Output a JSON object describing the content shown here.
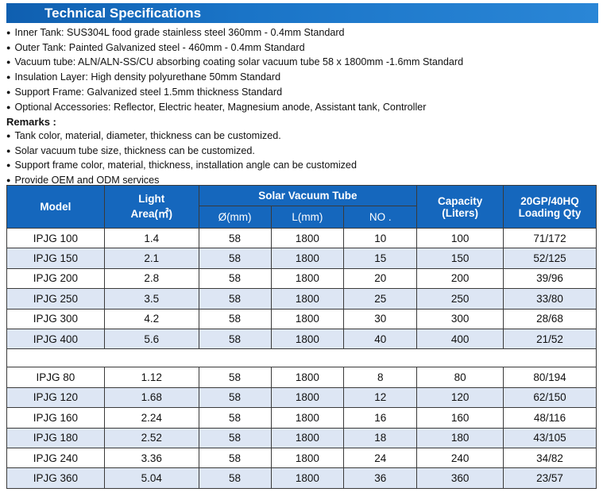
{
  "title": "Technical Specifications",
  "specs": [
    "Inner Tank: SUS304L food grade stainless steel 360mm - 0.4mm Standard",
    "Outer Tank: Painted Galvanized steel - 460mm - 0.4mm Standard",
    "Vacuum tube: ALN/ALN-SS/CU absorbing coating solar vacuum tube 58 x 1800mm -1.6mm Standard",
    "Insulation Layer: High density polyurethane 50mm Standard",
    "Support Frame: Galvanized steel 1.5mm thickness Standard",
    "Optional Accessories: Reflector, Electric heater, Magnesium anode, Assistant tank, Controller"
  ],
  "remarks_heading": "Remarks :",
  "remarks": [
    "Tank color, material, diameter, thickness can be customized.",
    "Solar vacuum tube size, thickness can be customized.",
    "Support frame color, material, thickness, installation angle can be customized",
    "Provide OEM and ODM services"
  ],
  "table": {
    "headers": {
      "model": "Model",
      "light_area_1": "Light",
      "light_area_2": "Area(㎡)",
      "tube_group": "Solar Vacuum Tube",
      "diameter": "Ø(mm)",
      "length": "L(mm)",
      "number": "NO .",
      "capacity_1": "Capacity",
      "capacity_2": "(Liters)",
      "loading_1": "20GP/40HQ",
      "loading_2": "Loading Qty"
    },
    "group1": [
      {
        "model": "IPJG 100",
        "area": "1.4",
        "dia": "58",
        "len": "1800",
        "no": "10",
        "cap": "100",
        "qty": "71/172"
      },
      {
        "model": "IPJG 150",
        "area": "2.1",
        "dia": "58",
        "len": "1800",
        "no": "15",
        "cap": "150",
        "qty": "52/125"
      },
      {
        "model": "IPJG 200",
        "area": "2.8",
        "dia": "58",
        "len": "1800",
        "no": "20",
        "cap": "200",
        "qty": "39/96"
      },
      {
        "model": "IPJG 250",
        "area": "3.5",
        "dia": "58",
        "len": "1800",
        "no": "25",
        "cap": "250",
        "qty": "33/80"
      },
      {
        "model": "IPJG 300",
        "area": "4.2",
        "dia": "58",
        "len": "1800",
        "no": "30",
        "cap": "300",
        "qty": "28/68"
      },
      {
        "model": "IPJG 400",
        "area": "5.6",
        "dia": "58",
        "len": "1800",
        "no": "40",
        "cap": "400",
        "qty": "21/52"
      }
    ],
    "group2": [
      {
        "model": "IPJG 80",
        "area": "1.12",
        "dia": "58",
        "len": "1800",
        "no": "8",
        "cap": "80",
        "qty": "80/194"
      },
      {
        "model": "IPJG 120",
        "area": "1.68",
        "dia": "58",
        "len": "1800",
        "no": "12",
        "cap": "120",
        "qty": "62/150"
      },
      {
        "model": "IPJG 160",
        "area": "2.24",
        "dia": "58",
        "len": "1800",
        "no": "16",
        "cap": "160",
        "qty": "48/116"
      },
      {
        "model": "IPJG 180",
        "area": "2.52",
        "dia": "58",
        "len": "1800",
        "no": "18",
        "cap": "180",
        "qty": "43/105"
      },
      {
        "model": "IPJG 240",
        "area": "3.36",
        "dia": "58",
        "len": "1800",
        "no": "24",
        "cap": "240",
        "qty": "34/82"
      },
      {
        "model": "IPJG 360",
        "area": "5.04",
        "dia": "58",
        "len": "1800",
        "no": "36",
        "cap": "360",
        "qty": "23/57"
      }
    ]
  }
}
